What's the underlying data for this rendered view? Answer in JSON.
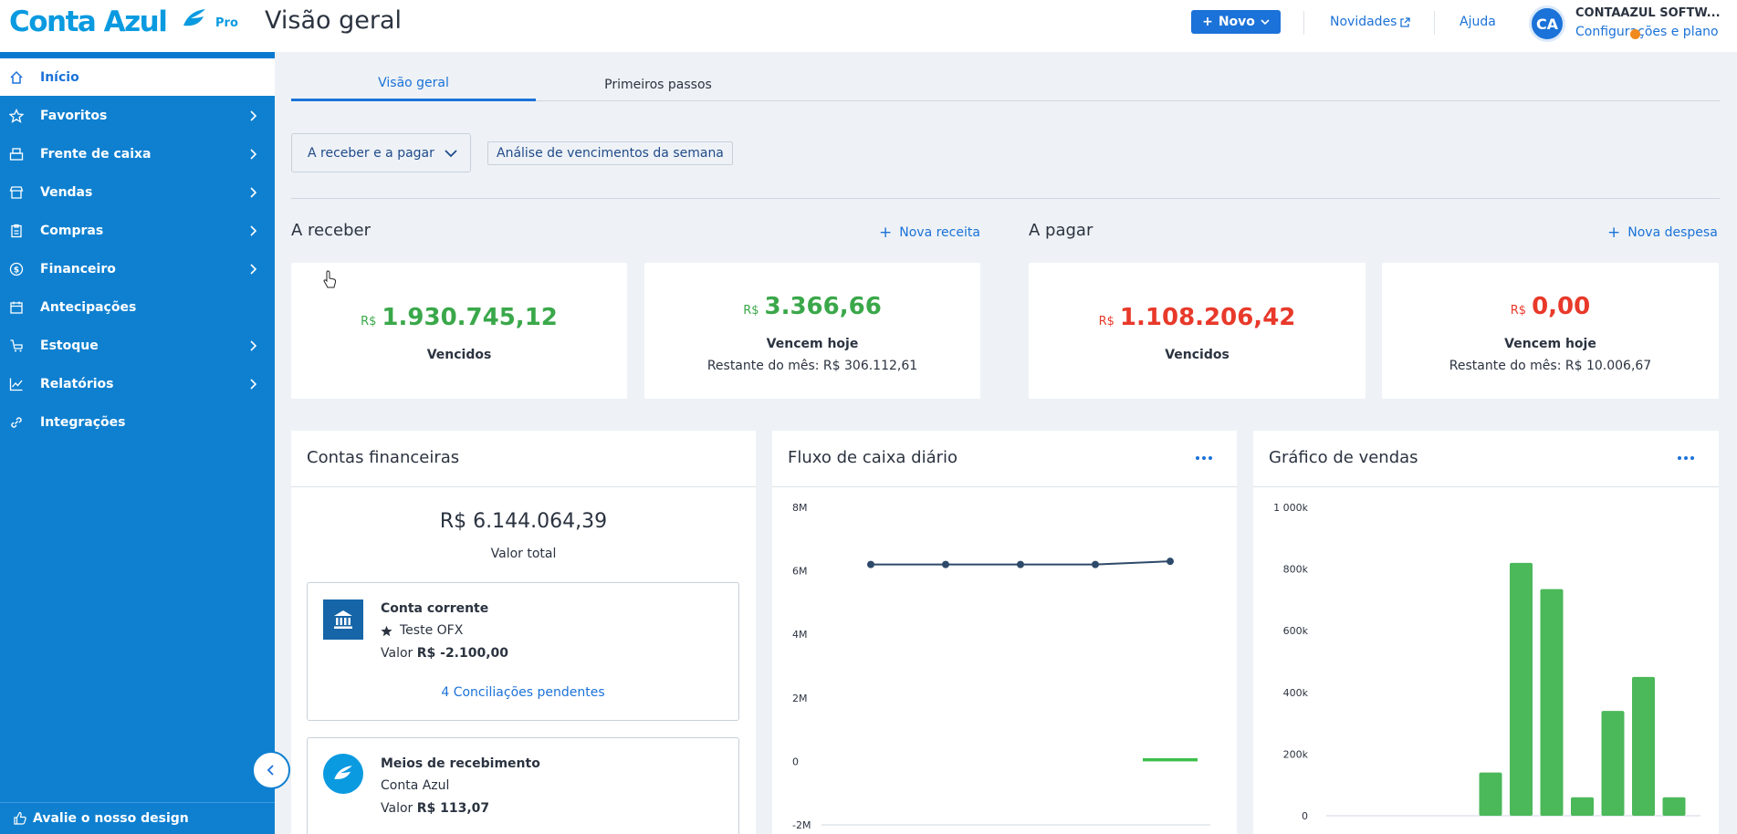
{
  "header": {
    "logo_text": "Conta Azul",
    "plan": "Pro",
    "page_title": "Visão geral",
    "new_button": "Novo",
    "news_link": "Novidades",
    "help_link": "Ajuda",
    "avatar_initials": "CA",
    "company_name": "CONTAAZUL SOFTW...",
    "settings_link": "Configurações e plano"
  },
  "sidebar": {
    "items": [
      {
        "label": "Início",
        "icon": "home-icon"
      },
      {
        "label": "Favoritos",
        "icon": "star-icon"
      },
      {
        "label": "Frente de caixa",
        "icon": "cash-register-icon"
      },
      {
        "label": "Vendas",
        "icon": "store-icon"
      },
      {
        "label": "Compras",
        "icon": "clipboard-icon"
      },
      {
        "label": "Financeiro",
        "icon": "dollar-circle-icon"
      },
      {
        "label": "Antecipações",
        "icon": "calendar-icon"
      },
      {
        "label": "Estoque",
        "icon": "stock-icon"
      },
      {
        "label": "Relatórios",
        "icon": "chart-line-icon"
      },
      {
        "label": "Integrações",
        "icon": "link-icon"
      }
    ],
    "feedback": "Avalie o nosso design"
  },
  "tabs": [
    "Visão geral",
    "Primeiros passos"
  ],
  "filters": {
    "select": "A receber e a pagar",
    "button": "Análise de vencimentos da semana"
  },
  "receivable": {
    "title": "A receber",
    "action": "Nova receita",
    "overdue": {
      "currency": "R$",
      "amount": "1.930.745,12",
      "label": "Vencidos"
    },
    "due_today": {
      "currency": "R$",
      "amount": "3.366,66",
      "label": "Vencem hoje",
      "sub": "Restante do mês: R$ 306.112,61"
    }
  },
  "payable": {
    "title": "A pagar",
    "action": "Nova despesa",
    "overdue": {
      "currency": "R$",
      "amount": "1.108.206,42",
      "label": "Vencidos"
    },
    "due_today": {
      "currency": "R$",
      "amount": "0,00",
      "label": "Vencem hoje",
      "sub": "Restante do mês: R$ 10.006,67"
    }
  },
  "accounts": {
    "title": "Contas financeiras",
    "total": "R$ 6.144.064,39",
    "total_label": "Valor total",
    "items": [
      {
        "name": "Conta corrente",
        "subtitle": "Teste OFX",
        "value_label": "Valor",
        "value": "R$ -2.100,00",
        "link": "4 Conciliações pendentes"
      },
      {
        "name": "Meios de recebimento",
        "subtitle": "Conta Azul",
        "value_label": "Valor",
        "value": "R$ 113,07"
      }
    ]
  },
  "cashflow": {
    "title": "Fluxo de caixa diário",
    "chart_data": {
      "type": "line",
      "yticks": [
        "8M",
        "6M",
        "4M",
        "2M",
        "0",
        "-2M"
      ],
      "ylim": [
        -2,
        8
      ],
      "series": [
        {
          "values": [
            6.2,
            6.2,
            6.2,
            6.2,
            6.3
          ]
        }
      ],
      "bar_values": [
        0,
        0,
        0,
        0,
        0.1
      ]
    }
  },
  "sales": {
    "title": "Gráfico de vendas",
    "chart_data": {
      "type": "bar",
      "yticks": [
        "1 000k",
        "800k",
        "600k",
        "400k",
        "200k",
        "0"
      ],
      "ylim": [
        0,
        1000
      ],
      "values": [
        0,
        0,
        0,
        0,
        0,
        140,
        820,
        735,
        60,
        340,
        450,
        60
      ]
    }
  },
  "colors": {
    "accent": "#1b72d8",
    "sidebar": "#0f80d0",
    "positive": "#3aa84a",
    "negative": "#e8392a"
  }
}
